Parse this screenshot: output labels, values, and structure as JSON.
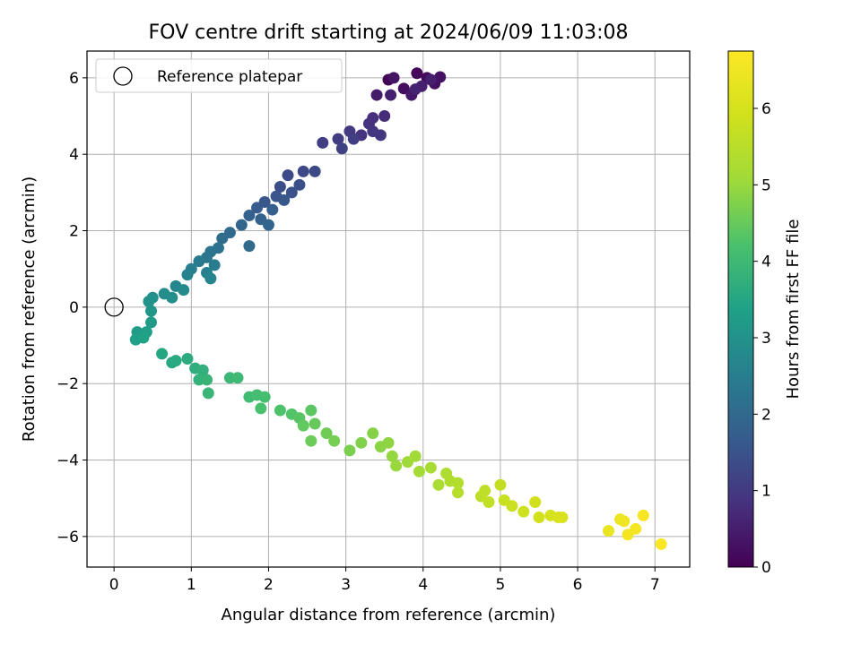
{
  "chart_data": {
    "type": "scatter",
    "title": "FOV centre drift starting at 2024/06/09 11:03:08",
    "xlabel": "Angular distance from reference (arcmin)",
    "ylabel": "Rotation from reference (arcmin)",
    "xlim": [
      -0.35,
      7.45
    ],
    "ylim": [
      -6.8,
      6.7
    ],
    "xticks": [
      "0",
      "1",
      "2",
      "3",
      "4",
      "5",
      "6",
      "7"
    ],
    "yticks": [
      "−6",
      "−4",
      "−2",
      "0",
      "2",
      "4",
      "6"
    ],
    "grid": true,
    "legend": {
      "placement": "top-left",
      "entries": [
        "Reference platepar"
      ]
    },
    "reference_point": {
      "x": 0,
      "y": 0,
      "label": "Reference platepar"
    },
    "colorbar": {
      "label": "Hours from first FF file",
      "colormap": "viridis",
      "range": [
        0,
        6.75
      ],
      "ticks": [
        "0",
        "1",
        "2",
        "3",
        "4",
        "5",
        "6"
      ]
    },
    "series": [
      {
        "colors_by": "hours",
        "points": [
          {
            "x": 3.55,
            "y": 5.95,
            "h": 0.05
          },
          {
            "x": 3.92,
            "y": 6.12,
            "h": 0.1
          },
          {
            "x": 4.05,
            "y": 6.0,
            "h": 0.15
          },
          {
            "x": 3.75,
            "y": 5.72,
            "h": 0.2
          },
          {
            "x": 4.15,
            "y": 5.85,
            "h": 0.25
          },
          {
            "x": 4.22,
            "y": 6.02,
            "h": 0.3
          },
          {
            "x": 3.62,
            "y": 6.0,
            "h": 0.35
          },
          {
            "x": 3.85,
            "y": 5.55,
            "h": 0.4
          },
          {
            "x": 3.4,
            "y": 5.55,
            "h": 0.45
          },
          {
            "x": 4.1,
            "y": 5.95,
            "h": 0.5
          },
          {
            "x": 3.98,
            "y": 5.78,
            "h": 0.55
          },
          {
            "x": 3.58,
            "y": 5.55,
            "h": 0.55
          },
          {
            "x": 3.9,
            "y": 5.7,
            "h": 0.6
          },
          {
            "x": 3.5,
            "y": 5.0,
            "h": 0.75
          },
          {
            "x": 3.35,
            "y": 4.95,
            "h": 0.8
          },
          {
            "x": 3.3,
            "y": 4.8,
            "h": 0.85
          },
          {
            "x": 3.2,
            "y": 4.5,
            "h": 0.9
          },
          {
            "x": 3.45,
            "y": 4.5,
            "h": 0.95
          },
          {
            "x": 3.35,
            "y": 4.6,
            "h": 0.95
          },
          {
            "x": 3.05,
            "y": 4.6,
            "h": 1.0
          },
          {
            "x": 2.9,
            "y": 4.4,
            "h": 1.05
          },
          {
            "x": 2.7,
            "y": 4.3,
            "h": 1.1
          },
          {
            "x": 3.1,
            "y": 4.4,
            "h": 1.1
          },
          {
            "x": 2.95,
            "y": 4.15,
            "h": 1.15
          },
          {
            "x": 2.45,
            "y": 3.55,
            "h": 1.3
          },
          {
            "x": 2.6,
            "y": 3.55,
            "h": 1.3
          },
          {
            "x": 2.25,
            "y": 3.45,
            "h": 1.35
          },
          {
            "x": 2.15,
            "y": 3.15,
            "h": 1.4
          },
          {
            "x": 2.4,
            "y": 3.2,
            "h": 1.45
          },
          {
            "x": 2.3,
            "y": 3.0,
            "h": 1.5
          },
          {
            "x": 2.1,
            "y": 2.9,
            "h": 1.55
          },
          {
            "x": 2.2,
            "y": 2.8,
            "h": 1.6
          },
          {
            "x": 1.95,
            "y": 2.75,
            "h": 1.6
          },
          {
            "x": 1.85,
            "y": 2.6,
            "h": 1.7
          },
          {
            "x": 2.05,
            "y": 2.55,
            "h": 1.75
          },
          {
            "x": 1.75,
            "y": 2.4,
            "h": 1.8
          },
          {
            "x": 1.9,
            "y": 2.3,
            "h": 1.85
          },
          {
            "x": 2.0,
            "y": 2.15,
            "h": 1.9
          },
          {
            "x": 1.65,
            "y": 2.15,
            "h": 1.95
          },
          {
            "x": 1.75,
            "y": 1.6,
            "h": 2.05
          },
          {
            "x": 1.5,
            "y": 1.95,
            "h": 2.05
          },
          {
            "x": 1.4,
            "y": 1.8,
            "h": 2.1
          },
          {
            "x": 1.35,
            "y": 1.55,
            "h": 2.2
          },
          {
            "x": 1.25,
            "y": 1.45,
            "h": 2.25
          },
          {
            "x": 1.2,
            "y": 1.3,
            "h": 2.3
          },
          {
            "x": 1.1,
            "y": 1.2,
            "h": 2.4
          },
          {
            "x": 1.3,
            "y": 1.1,
            "h": 2.45
          },
          {
            "x": 1.0,
            "y": 1.0,
            "h": 2.5
          },
          {
            "x": 1.2,
            "y": 0.9,
            "h": 2.55
          },
          {
            "x": 0.95,
            "y": 0.85,
            "h": 2.6
          },
          {
            "x": 1.25,
            "y": 0.75,
            "h": 2.65
          },
          {
            "x": 0.8,
            "y": 0.55,
            "h": 2.7
          },
          {
            "x": 0.9,
            "y": 0.45,
            "h": 2.8
          },
          {
            "x": 0.65,
            "y": 0.35,
            "h": 2.85
          },
          {
            "x": 0.75,
            "y": 0.25,
            "h": 2.9
          },
          {
            "x": 0.5,
            "y": 0.25,
            "h": 2.95
          },
          {
            "x": 0.45,
            "y": 0.15,
            "h": 3.0
          },
          {
            "x": 0.48,
            "y": -0.1,
            "h": 3.1
          },
          {
            "x": 0.48,
            "y": -0.4,
            "h": 3.2
          },
          {
            "x": 0.3,
            "y": -0.65,
            "h": 3.25
          },
          {
            "x": 0.42,
            "y": -0.65,
            "h": 3.3
          },
          {
            "x": 0.28,
            "y": -0.85,
            "h": 3.35
          },
          {
            "x": 0.38,
            "y": -0.8,
            "h": 3.4
          },
          {
            "x": 0.62,
            "y": -1.22,
            "h": 3.5
          },
          {
            "x": 0.75,
            "y": -1.45,
            "h": 3.55
          },
          {
            "x": 0.8,
            "y": -1.4,
            "h": 3.6
          },
          {
            "x": 0.95,
            "y": -1.35,
            "h": 3.65
          },
          {
            "x": 1.05,
            "y": -1.6,
            "h": 3.7
          },
          {
            "x": 1.15,
            "y": -1.65,
            "h": 3.75
          },
          {
            "x": 1.1,
            "y": -1.9,
            "h": 3.8
          },
          {
            "x": 1.2,
            "y": -1.9,
            "h": 3.85
          },
          {
            "x": 1.22,
            "y": -2.25,
            "h": 3.9
          },
          {
            "x": 1.5,
            "y": -1.85,
            "h": 3.95
          },
          {
            "x": 1.6,
            "y": -1.85,
            "h": 4.0
          },
          {
            "x": 1.75,
            "y": -2.35,
            "h": 4.05
          },
          {
            "x": 1.85,
            "y": -2.3,
            "h": 4.1
          },
          {
            "x": 1.95,
            "y": -2.35,
            "h": 4.15
          },
          {
            "x": 1.9,
            "y": -2.65,
            "h": 4.2
          },
          {
            "x": 2.15,
            "y": -2.7,
            "h": 4.25
          },
          {
            "x": 2.3,
            "y": -2.8,
            "h": 4.3
          },
          {
            "x": 2.4,
            "y": -2.9,
            "h": 4.35
          },
          {
            "x": 2.55,
            "y": -2.7,
            "h": 4.4
          },
          {
            "x": 2.45,
            "y": -3.1,
            "h": 4.45
          },
          {
            "x": 2.6,
            "y": -3.05,
            "h": 4.5
          },
          {
            "x": 2.55,
            "y": -3.5,
            "h": 4.55
          },
          {
            "x": 2.75,
            "y": -3.3,
            "h": 4.6
          },
          {
            "x": 2.85,
            "y": -3.5,
            "h": 4.65
          },
          {
            "x": 3.05,
            "y": -3.75,
            "h": 4.7
          },
          {
            "x": 3.2,
            "y": -3.55,
            "h": 4.75
          },
          {
            "x": 3.35,
            "y": -3.3,
            "h": 4.8
          },
          {
            "x": 3.45,
            "y": -3.65,
            "h": 4.85
          },
          {
            "x": 3.55,
            "y": -3.55,
            "h": 4.9
          },
          {
            "x": 3.6,
            "y": -3.9,
            "h": 4.95
          },
          {
            "x": 3.65,
            "y": -4.15,
            "h": 5.0
          },
          {
            "x": 3.8,
            "y": -4.05,
            "h": 5.05
          },
          {
            "x": 3.9,
            "y": -3.9,
            "h": 5.1
          },
          {
            "x": 3.95,
            "y": -4.3,
            "h": 5.15
          },
          {
            "x": 4.1,
            "y": -4.2,
            "h": 5.2
          },
          {
            "x": 4.2,
            "y": -4.65,
            "h": 5.25
          },
          {
            "x": 4.3,
            "y": -4.35,
            "h": 5.3
          },
          {
            "x": 4.35,
            "y": -4.55,
            "h": 5.35
          },
          {
            "x": 4.45,
            "y": -4.6,
            "h": 5.4
          },
          {
            "x": 4.45,
            "y": -4.85,
            "h": 5.45
          },
          {
            "x": 4.75,
            "y": -4.95,
            "h": 5.55
          },
          {
            "x": 4.8,
            "y": -4.8,
            "h": 5.6
          },
          {
            "x": 4.85,
            "y": -5.1,
            "h": 5.65
          },
          {
            "x": 5.0,
            "y": -4.65,
            "h": 5.7
          },
          {
            "x": 5.05,
            "y": -5.05,
            "h": 5.75
          },
          {
            "x": 5.15,
            "y": -5.2,
            "h": 5.8
          },
          {
            "x": 5.3,
            "y": -5.35,
            "h": 5.85
          },
          {
            "x": 5.45,
            "y": -5.1,
            "h": 5.9
          },
          {
            "x": 5.5,
            "y": -5.5,
            "h": 5.95
          },
          {
            "x": 5.65,
            "y": -5.45,
            "h": 6.0
          },
          {
            "x": 5.75,
            "y": -5.5,
            "h": 6.05
          },
          {
            "x": 5.8,
            "y": -5.5,
            "h": 6.1
          },
          {
            "x": 6.4,
            "y": -5.85,
            "h": 6.4
          },
          {
            "x": 6.55,
            "y": -5.55,
            "h": 6.45
          },
          {
            "x": 6.6,
            "y": -5.6,
            "h": 6.5
          },
          {
            "x": 6.65,
            "y": -5.95,
            "h": 6.55
          },
          {
            "x": 6.75,
            "y": -5.8,
            "h": 6.6
          },
          {
            "x": 6.85,
            "y": -5.45,
            "h": 6.65
          },
          {
            "x": 7.08,
            "y": -6.2,
            "h": 6.7
          }
        ]
      }
    ]
  }
}
